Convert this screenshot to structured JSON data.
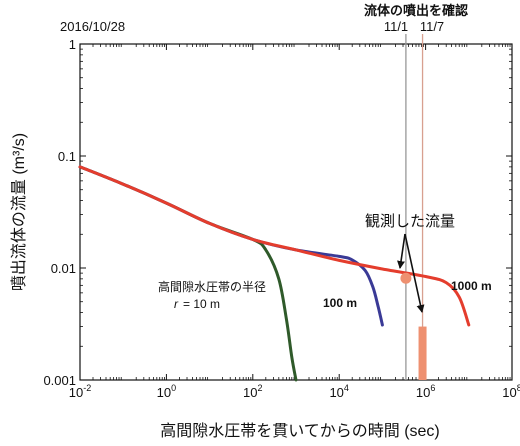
{
  "chart_data": {
    "type": "line",
    "scale": {
      "x": "log",
      "y": "log"
    },
    "xlim": [
      0.01,
      100000000
    ],
    "ylim": [
      0.001,
      1
    ],
    "xlabel": "高間隙水圧帯を貫いてからの時間 (sec)",
    "ylabel": "噴出流体の流量 (m³/s)",
    "x_ticks": [
      {
        "v": 0.01,
        "base": "10",
        "exp": "-2"
      },
      {
        "v": 1,
        "base": "10",
        "exp": "0"
      },
      {
        "v": 100,
        "base": "10",
        "exp": "2"
      },
      {
        "v": 10000,
        "base": "10",
        "exp": "4"
      },
      {
        "v": 1000000,
        "base": "10",
        "exp": "6"
      },
      {
        "v": 100000000,
        "base": "10",
        "exp": "8"
      }
    ],
    "y_ticks": [
      {
        "v": 1,
        "label": "1"
      },
      {
        "v": 0.1,
        "label": "0.1"
      },
      {
        "v": 0.01,
        "label": "0.01"
      },
      {
        "v": 0.001,
        "label": "0.001"
      }
    ],
    "series": [
      {
        "name": "r = 10 m",
        "color": "#2f5a2a",
        "x": [
          0.01,
          0.1,
          1,
          10,
          100,
          200,
          400,
          600,
          800,
          1000
        ],
        "y": [
          0.08,
          0.056,
          0.038,
          0.025,
          0.018,
          0.0145,
          0.008,
          0.0035,
          0.0016,
          0.001
        ]
      },
      {
        "name": "100 m",
        "color": "#3a3a96",
        "x": [
          0.01,
          0.1,
          1,
          10,
          100,
          1000,
          10000,
          20000,
          40000,
          60000,
          80000,
          100000
        ],
        "y": [
          0.08,
          0.056,
          0.038,
          0.025,
          0.018,
          0.0145,
          0.0127,
          0.0118,
          0.0095,
          0.0068,
          0.0045,
          0.0031
        ]
      },
      {
        "name": "1000 m",
        "color": "#e43d2d",
        "x": [
          0.01,
          0.1,
          1,
          10,
          100,
          1000,
          10000,
          100000,
          1000000,
          3000000,
          6000000,
          10000000
        ],
        "y": [
          0.08,
          0.056,
          0.038,
          0.025,
          0.018,
          0.0145,
          0.0117,
          0.0098,
          0.0084,
          0.0074,
          0.0055,
          0.0031
        ]
      }
    ],
    "observations": [
      {
        "label": "11/1",
        "x": 350000,
        "flow": 0.0081,
        "color": "#ee9070"
      },
      {
        "label": "11/7",
        "x": 850000,
        "flow_range": [
          0.001,
          0.003
        ],
        "color": "#ee9070"
      }
    ],
    "annotations": {
      "start_date": "2016/10/28",
      "discharge_confirmed": "流体の噴出を確認",
      "observed_flow": "観測した流量",
      "radius_title": "高間隙水圧帯の半径",
      "r_var": "r",
      "r_value": "= 10 m",
      "label_100m": "100 m",
      "label_1000m": "1000 m"
    }
  }
}
